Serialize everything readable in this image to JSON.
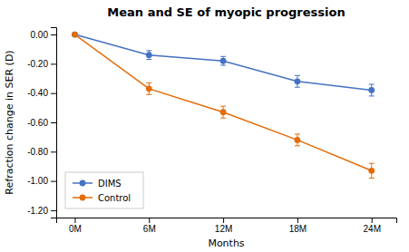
{
  "chart_data": {
    "type": "line",
    "title": "Mean and SE of myopic progression",
    "xlabel": "Months",
    "ylabel": "Refraction change in SER (D)",
    "x": [
      0,
      6,
      12,
      18,
      24
    ],
    "xlim": [
      -1.5,
      26
    ],
    "xticks": [
      {
        "value": 0,
        "label": "0M"
      },
      {
        "value": 6,
        "label": "6M"
      },
      {
        "value": 12,
        "label": "12M"
      },
      {
        "value": 18,
        "label": "18M"
      },
      {
        "value": 24,
        "label": "24M"
      }
    ],
    "ylim": [
      -1.25,
      0.05
    ],
    "yticks": [
      {
        "value": 0.0,
        "label": "0.00"
      },
      {
        "value": -0.2,
        "label": "-0.20"
      },
      {
        "value": -0.4,
        "label": "-0.40"
      },
      {
        "value": -0.6,
        "label": "-0.60"
      },
      {
        "value": -0.8,
        "label": "-0.80"
      },
      {
        "value": -1.0,
        "label": "-1.00"
      },
      {
        "value": -1.2,
        "label": "-1.20"
      }
    ],
    "series": [
      {
        "name": "DIMS",
        "color": "#4472C4",
        "values": [
          0.0,
          -0.14,
          -0.18,
          -0.32,
          -0.38
        ],
        "errors": [
          0.0,
          0.03,
          0.03,
          0.04,
          0.04
        ]
      },
      {
        "name": "Control",
        "color": "#E36C09",
        "values": [
          0.0,
          -0.37,
          -0.53,
          -0.72,
          -0.93
        ],
        "errors": [
          0.0,
          0.04,
          0.04,
          0.04,
          0.05
        ]
      }
    ],
    "marker": "circle",
    "grid": false,
    "legend": "lower left"
  }
}
